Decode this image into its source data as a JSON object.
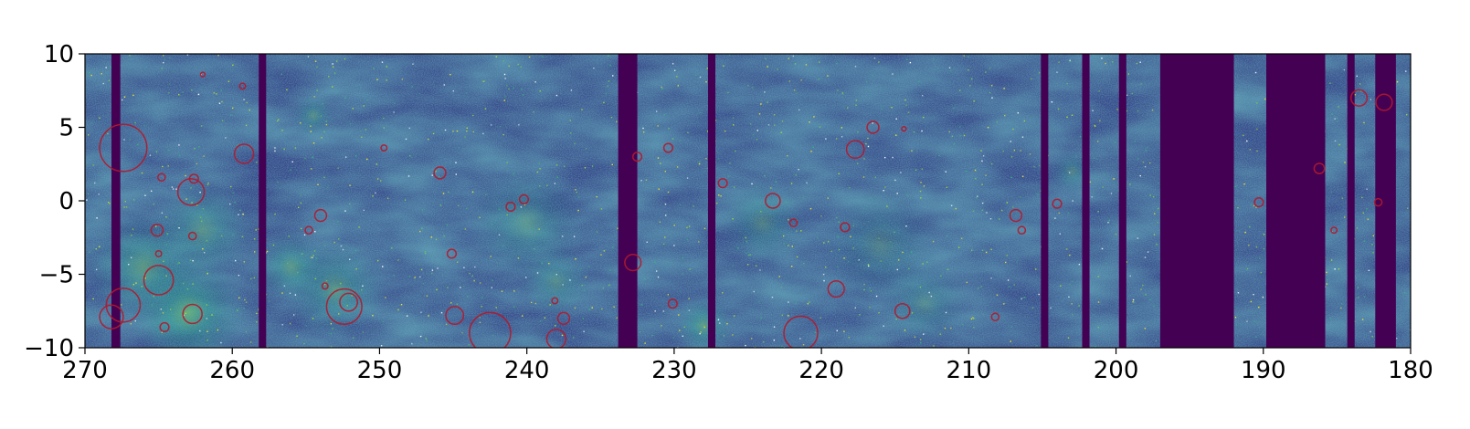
{
  "chart_data": {
    "type": "heatmap",
    "title": "",
    "xlabel": "",
    "ylabel": "",
    "xlim": [
      270,
      180
    ],
    "ylim": [
      -10,
      10
    ],
    "x_ticks": [
      270,
      260,
      250,
      240,
      230,
      220,
      210,
      200,
      190,
      180
    ],
    "y_ticks": [
      10,
      5,
      0,
      -5,
      -10
    ],
    "x_tick_labels": [
      "270",
      "260",
      "250",
      "240",
      "230",
      "220",
      "210",
      "200",
      "190",
      "180"
    ],
    "y_tick_labels": [
      "10",
      "5",
      "0",
      "−5",
      "−10"
    ],
    "colormap": "viridis",
    "grid": false,
    "coverage_gaps": [
      {
        "x_from": 268.2,
        "x_to": 267.6
      },
      {
        "x_from": 258.2,
        "x_to": 257.7
      },
      {
        "x_from": 233.8,
        "x_to": 232.5
      },
      {
        "x_from": 227.7,
        "x_to": 227.2
      },
      {
        "x_from": 205.1,
        "x_to": 204.6
      },
      {
        "x_from": 202.3,
        "x_to": 201.8
      },
      {
        "x_from": 199.8,
        "x_to": 199.3
      },
      {
        "x_from": 197.0,
        "x_to": 192.0
      },
      {
        "x_from": 189.8,
        "x_to": 185.8
      },
      {
        "x_from": 184.3,
        "x_to": 183.8
      },
      {
        "x_from": 182.4,
        "x_to": 181.0
      }
    ],
    "bright_regions": [
      {
        "x": 263.0,
        "y": -7.6,
        "radius": 4.0,
        "intensity": 0.6
      },
      {
        "x": 266.0,
        "y": -4.5,
        "radius": 4.0,
        "intensity": 0.45
      },
      {
        "x": 262.0,
        "y": -2.0,
        "radius": 3.5,
        "intensity": 0.35
      },
      {
        "x": 253.0,
        "y": -6.0,
        "radius": 3.5,
        "intensity": 0.4
      },
      {
        "x": 256.0,
        "y": -4.5,
        "radius": 2.5,
        "intensity": 0.4
      },
      {
        "x": 240.0,
        "y": -1.5,
        "radius": 4.0,
        "intensity": 0.3
      },
      {
        "x": 238.0,
        "y": -5.5,
        "radius": 2.5,
        "intensity": 0.3
      },
      {
        "x": 228.0,
        "y": -8.5,
        "radius": 2.0,
        "intensity": 0.45
      },
      {
        "x": 224.0,
        "y": -1.5,
        "radius": 3.0,
        "intensity": 0.3
      },
      {
        "x": 216.0,
        "y": -3.0,
        "radius": 4.0,
        "intensity": 0.25
      },
      {
        "x": 213.0,
        "y": -7.0,
        "radius": 3.0,
        "intensity": 0.25
      },
      {
        "x": 254.5,
        "y": 5.8,
        "radius": 1.5,
        "intensity": 0.35
      },
      {
        "x": 203.0,
        "y": 2.0,
        "radius": 1.5,
        "intensity": 0.3
      }
    ],
    "circles": [
      {
        "x": 267.4,
        "y": 3.6,
        "r": 1.6
      },
      {
        "x": 259.2,
        "y": 3.2,
        "r": 0.65
      },
      {
        "x": 262.8,
        "y": 0.6,
        "r": 0.9
      },
      {
        "x": 262.6,
        "y": 1.5,
        "r": 0.3
      },
      {
        "x": 264.8,
        "y": 1.6,
        "r": 0.25
      },
      {
        "x": 265.1,
        "y": -2.0,
        "r": 0.4
      },
      {
        "x": 262.7,
        "y": -2.4,
        "r": 0.25
      },
      {
        "x": 265.0,
        "y": -5.4,
        "r": 1.0
      },
      {
        "x": 267.4,
        "y": -7.1,
        "r": 1.15
      },
      {
        "x": 268.2,
        "y": -7.9,
        "r": 0.8
      },
      {
        "x": 262.7,
        "y": -7.7,
        "r": 0.65
      },
      {
        "x": 264.6,
        "y": -8.6,
        "r": 0.3
      },
      {
        "x": 265.0,
        "y": -3.6,
        "r": 0.2
      },
      {
        "x": 259.3,
        "y": 7.8,
        "r": 0.2
      },
      {
        "x": 262.0,
        "y": 8.6,
        "r": 0.15
      },
      {
        "x": 254.0,
        "y": -1.0,
        "r": 0.4
      },
      {
        "x": 252.4,
        "y": -7.2,
        "r": 1.2
      },
      {
        "x": 252.1,
        "y": -6.9,
        "r": 0.6
      },
      {
        "x": 254.8,
        "y": -2.0,
        "r": 0.25
      },
      {
        "x": 253.7,
        "y": -5.8,
        "r": 0.2
      },
      {
        "x": 245.9,
        "y": 1.9,
        "r": 0.4
      },
      {
        "x": 245.1,
        "y": -3.6,
        "r": 0.3
      },
      {
        "x": 244.9,
        "y": -7.8,
        "r": 0.6
      },
      {
        "x": 242.5,
        "y": -9.0,
        "r": 1.4
      },
      {
        "x": 241.1,
        "y": -0.4,
        "r": 0.3
      },
      {
        "x": 240.2,
        "y": 0.1,
        "r": 0.3
      },
      {
        "x": 238.0,
        "y": -9.4,
        "r": 0.65
      },
      {
        "x": 237.5,
        "y": -8.0,
        "r": 0.4
      },
      {
        "x": 238.1,
        "y": -6.8,
        "r": 0.2
      },
      {
        "x": 249.7,
        "y": 3.6,
        "r": 0.2
      },
      {
        "x": 232.8,
        "y": -4.2,
        "r": 0.55
      },
      {
        "x": 232.5,
        "y": 3.0,
        "r": 0.3
      },
      {
        "x": 230.4,
        "y": 3.6,
        "r": 0.3
      },
      {
        "x": 230.1,
        "y": -7.0,
        "r": 0.3
      },
      {
        "x": 226.7,
        "y": 1.2,
        "r": 0.3
      },
      {
        "x": 223.3,
        "y": 0.0,
        "r": 0.5
      },
      {
        "x": 221.4,
        "y": -9.0,
        "r": 1.15
      },
      {
        "x": 219.0,
        "y": -6.0,
        "r": 0.55
      },
      {
        "x": 218.4,
        "y": -1.8,
        "r": 0.3
      },
      {
        "x": 217.7,
        "y": 3.5,
        "r": 0.6
      },
      {
        "x": 216.5,
        "y": 5.0,
        "r": 0.4
      },
      {
        "x": 214.5,
        "y": -7.5,
        "r": 0.5
      },
      {
        "x": 214.4,
        "y": 4.9,
        "r": 0.15
      },
      {
        "x": 221.9,
        "y": -1.5,
        "r": 0.25
      },
      {
        "x": 208.2,
        "y": -7.9,
        "r": 0.25
      },
      {
        "x": 206.8,
        "y": -1.0,
        "r": 0.4
      },
      {
        "x": 206.4,
        "y": -2.0,
        "r": 0.25
      },
      {
        "x": 204.0,
        "y": -0.2,
        "r": 0.3
      },
      {
        "x": 190.3,
        "y": -0.1,
        "r": 0.3
      },
      {
        "x": 186.2,
        "y": 2.2,
        "r": 0.35
      },
      {
        "x": 183.5,
        "y": 7.0,
        "r": 0.55
      },
      {
        "x": 181.8,
        "y": 6.7,
        "r": 0.55
      },
      {
        "x": 182.2,
        "y": -0.1,
        "r": 0.25
      },
      {
        "x": 185.2,
        "y": -2.0,
        "r": 0.2
      }
    ]
  }
}
